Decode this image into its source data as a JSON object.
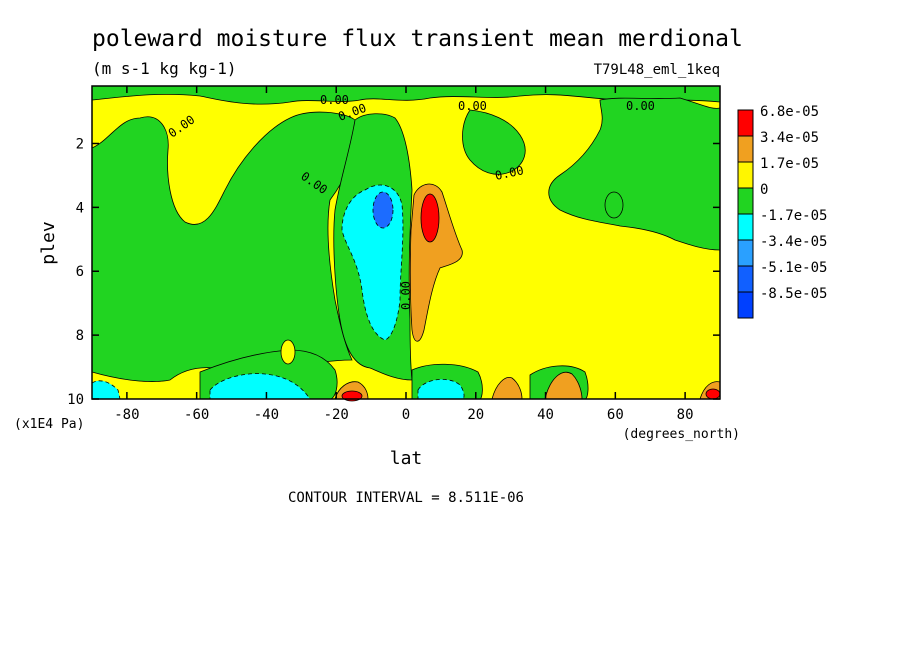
{
  "chart_data": {
    "type": "heatmap",
    "title": "poleward moisture flux transient mean merdional",
    "units": "(m s-1 kg kg-1)",
    "run_label": "T79L48_eml_1keq",
    "xlabel": "lat",
    "xunits": "(degrees_north)",
    "ylabel": "plev",
    "yunits": "(x1E4 Pa)",
    "xlim": [
      -90,
      90
    ],
    "ylim": [
      0.2,
      10
    ],
    "x_ticks": [
      "-80",
      "-60",
      "-40",
      "-20",
      "0",
      "20",
      "40",
      "60",
      "80"
    ],
    "y_ticks": [
      "2",
      "4",
      "6",
      "8",
      "10"
    ],
    "contour_interval_label": "CONTOUR INTERVAL = 8.511E-06",
    "contour_labels": [
      "0.00",
      "0.00",
      "0.00",
      "0.00",
      "0.00",
      "0.00",
      "0.00",
      "0.00"
    ],
    "legend": [
      {
        "label": "6.8e-05",
        "color": "#ff0000"
      },
      {
        "label": "3.4e-05",
        "color": "#f0a020"
      },
      {
        "label": "1.7e-05",
        "color": "#fff600"
      },
      {
        "label": "0",
        "color": "#21d421"
      },
      {
        "label": "-1.7e-05",
        "color": "#00ffff"
      },
      {
        "label": "-3.4e-05",
        "color": "#2aa0ff"
      },
      {
        "label": "-5.1e-05",
        "color": "#1160ff"
      },
      {
        "label": "-8.5e-05",
        "color": "#0040ff"
      }
    ],
    "colors": {
      "positive_weak": "#ffff00",
      "negative_weak": "#21d421",
      "positive_mid": "#f0a020",
      "positive_strong": "#ff0000",
      "negative_mid": "#00ffff",
      "negative_strong": "#1c6cff"
    }
  }
}
